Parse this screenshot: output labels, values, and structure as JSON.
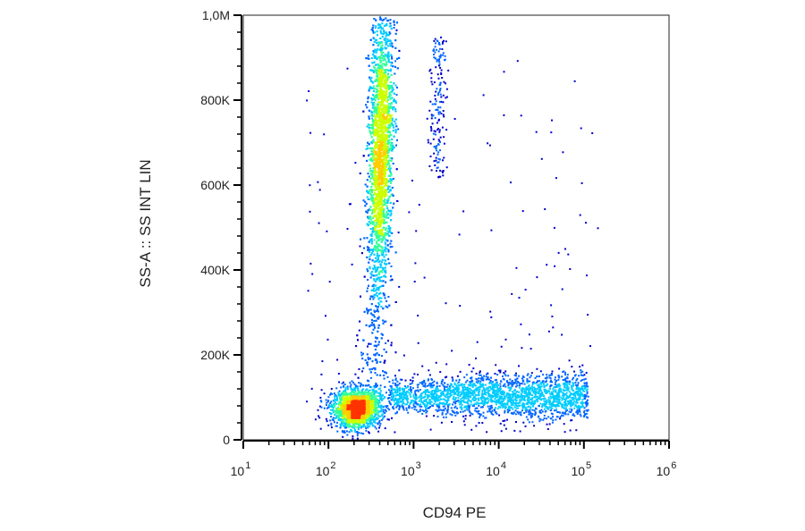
{
  "chart_data": {
    "type": "scatter",
    "subtype": "flow-cytometry density dot plot",
    "xlabel": "CD94 PE",
    "ylabel": "SS-A :: SS INT LIN",
    "x_scale": "log",
    "y_scale": "linear",
    "xlim": [
      10,
      1000000
    ],
    "ylim": [
      0,
      1000000
    ],
    "x_ticks": [
      {
        "value": 10,
        "base": "10",
        "exp": "1"
      },
      {
        "value": 100,
        "base": "10",
        "exp": "2"
      },
      {
        "value": 1000,
        "base": "10",
        "exp": "3"
      },
      {
        "value": 10000,
        "base": "10",
        "exp": "4"
      },
      {
        "value": 100000,
        "base": "10",
        "exp": "5"
      },
      {
        "value": 1000000,
        "base": "10",
        "exp": "6"
      }
    ],
    "y_ticks": [
      {
        "value": 0,
        "label": "0"
      },
      {
        "value": 200000,
        "label": "200K"
      },
      {
        "value": 400000,
        "label": "400K"
      },
      {
        "value": 600000,
        "label": "600K"
      },
      {
        "value": 800000,
        "label": "800K"
      },
      {
        "value": 1000000,
        "label": "1,0M"
      }
    ],
    "density_colors": [
      "#0000cc",
      "#0066ff",
      "#00ccff",
      "#33ff99",
      "#ccff00",
      "#ffcc00",
      "#ff3300"
    ],
    "grid": false,
    "legend": "none",
    "populations": [
      {
        "x_center": 210,
        "x_log_sd": 0.14,
        "y_center": 75000,
        "y_sd": 22000,
        "count": 1900
      },
      {
        "x_center": 380,
        "x_log_sd": 0.07,
        "y_range": [
          90000,
          1000000
        ],
        "y_peak": 680000,
        "count": 5200
      },
      {
        "x_range": [
          500,
          110000
        ],
        "y_center": 105000,
        "y_sd": 20000,
        "count": 2200
      },
      {
        "x_center": 1900,
        "x_log_sd": 0.05,
        "y_range": [
          620000,
          950000
        ],
        "count": 170
      },
      {
        "x_range": [
          50,
          150000
        ],
        "y_range": [
          20000,
          900000
        ],
        "count": 180
      }
    ]
  }
}
